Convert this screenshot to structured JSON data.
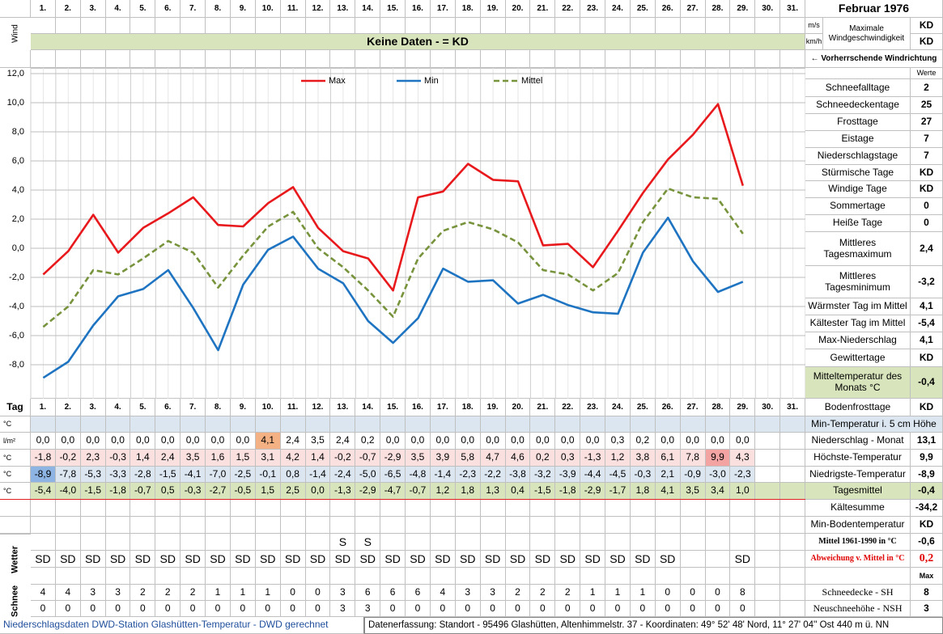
{
  "header": {
    "title": "Februar 1976"
  },
  "wind": {
    "label": "Wind",
    "units": [
      "m/s",
      "km/h"
    ],
    "banner": "Keine Daten -  = KD",
    "max_label": "Maximale Windgeschwindigkeit",
    "max_values": [
      "KD",
      "KD"
    ],
    "direction": "← Vorherrschende Windrichtung"
  },
  "chart_data": {
    "type": "line",
    "categories": [
      "1.",
      "2.",
      "3.",
      "4.",
      "5.",
      "6.",
      "7.",
      "8.",
      "9.",
      "10.",
      "11.",
      "12.",
      "13.",
      "14.",
      "15.",
      "16.",
      "17.",
      "18.",
      "19.",
      "20.",
      "21.",
      "22.",
      "23.",
      "24.",
      "25.",
      "26.",
      "27.",
      "28.",
      "29.",
      "30.",
      "31."
    ],
    "series": [
      {
        "name": "Max",
        "color": "#e8191c",
        "values": [
          -1.8,
          -0.2,
          2.3,
          -0.3,
          1.4,
          2.4,
          3.5,
          1.6,
          1.5,
          3.1,
          4.2,
          1.4,
          -0.2,
          -0.7,
          -2.9,
          3.5,
          3.9,
          5.8,
          4.7,
          4.6,
          0.2,
          0.3,
          -1.3,
          1.2,
          3.8,
          6.1,
          7.8,
          9.9,
          4.3,
          null,
          null
        ],
        "value_labels": [
          "-1,8",
          "-0,2",
          "2,3",
          "-0,3",
          "1,4",
          "2,4",
          "3,5",
          "1,6",
          "1,5",
          "3,1",
          "4,2",
          "1,4",
          "-0,2",
          "-0,7",
          "-2,9",
          "3,5",
          "3,9",
          "5,8",
          "4,7",
          "4,6",
          "0,2",
          "0,3",
          "-1,3",
          "1,2",
          "3,8",
          "6,1",
          "7,8",
          "9,9",
          "4,3",
          null,
          null
        ]
      },
      {
        "name": "Min",
        "color": "#1f74c2",
        "values": [
          -8.9,
          -7.8,
          -5.3,
          -3.3,
          -2.8,
          -1.5,
          -4.1,
          -7.0,
          -2.5,
          -0.1,
          0.8,
          -1.4,
          -2.4,
          -5.0,
          -6.5,
          -4.8,
          -1.4,
          -2.3,
          -2.2,
          -3.8,
          -3.2,
          -3.9,
          -4.4,
          -4.5,
          -0.3,
          2.1,
          -0.9,
          -3.0,
          -2.3,
          null,
          null
        ],
        "value_labels": [
          "-8,9",
          "-7,8",
          "-5,3",
          "-3,3",
          "-2,8",
          "-1,5",
          "-4,1",
          "-7,0",
          "-2,5",
          "-0,1",
          "0,8",
          "-1,4",
          "-2,4",
          "-5,0",
          "-6,5",
          "-4,8",
          "-1,4",
          "-2,3",
          "-2,2",
          "-3,8",
          "-3,2",
          "-3,9",
          "-4,4",
          "-4,5",
          "-0,3",
          "2,1",
          "-0,9",
          "-3,0",
          "-2,3",
          null,
          null
        ]
      },
      {
        "name": "Mittel",
        "color": "#77933c",
        "line_style": "dashed",
        "values": [
          -5.4,
          -4.0,
          -1.5,
          -1.8,
          -0.7,
          0.5,
          -0.3,
          -2.7,
          -0.5,
          1.5,
          2.5,
          0.0,
          -1.3,
          -2.9,
          -4.7,
          -0.7,
          1.2,
          1.8,
          1.3,
          0.4,
          -1.5,
          -1.8,
          -2.9,
          -1.7,
          1.8,
          4.1,
          3.5,
          3.4,
          1.0,
          null,
          null
        ],
        "value_labels": [
          "-5,4",
          "-4,0",
          "-1,5",
          "-1,8",
          "-0,7",
          "0,5",
          "-0,3",
          "-2,7",
          "-0,5",
          "1,5",
          "2,5",
          "0,0",
          "-1,3",
          "-2,9",
          "-4,7",
          "-0,7",
          "1,2",
          "1,8",
          "1,3",
          "0,4",
          "-1,5",
          "-1,8",
          "-2,9",
          "-1,7",
          "1,8",
          "4,1",
          "3,5",
          "3,4",
          "1,0",
          null,
          null
        ]
      }
    ],
    "ylim": [
      -10,
      12
    ],
    "yticks": [
      {
        "value": 12,
        "label": "12,0"
      },
      {
        "value": 10,
        "label": "10,0"
      },
      {
        "value": 8,
        "label": "8,0"
      },
      {
        "value": 6,
        "label": "6,0"
      },
      {
        "value": 4,
        "label": "4,0"
      },
      {
        "value": 2,
        "label": "2,0"
      },
      {
        "value": 0,
        "label": "0,0"
      },
      {
        "value": -2,
        "label": "-2,0"
      },
      {
        "value": -4,
        "label": "-4,0"
      },
      {
        "value": -6,
        "label": "-6,0"
      },
      {
        "value": -8,
        "label": "-8,0"
      }
    ],
    "grid": true
  },
  "stats": {
    "header": "Werte",
    "rows": [
      {
        "label": "Schneefalltage",
        "value": "2"
      },
      {
        "label": "Schneedeckentage",
        "value": "25"
      },
      {
        "label": "Frosttage",
        "value": "27"
      },
      {
        "label": "Eistage",
        "value": "7"
      },
      {
        "label": "Niederschlagstage",
        "value": "7"
      },
      {
        "label": "Stürmische Tage",
        "value": "KD"
      },
      {
        "label": "Windige Tage",
        "value": "KD"
      },
      {
        "label": "Sommertage",
        "value": "0"
      },
      {
        "label": "Heiße Tage",
        "value": "0"
      },
      {
        "label": "Mittleres Tagesmaximum",
        "value": "2,4"
      },
      {
        "label": "Mittleres Tagesminimum",
        "value": "-3,2"
      },
      {
        "label": "Wärmster Tag im Mittel",
        "value": "4,1"
      },
      {
        "label": "Kältester Tag im Mittel",
        "value": "-5,4"
      },
      {
        "label": "Max-Niederschlag",
        "value": "4,1"
      },
      {
        "label": "Gewittertage",
        "value": "KD"
      },
      {
        "label": "Mitteltemperatur des Monats °C",
        "value": "-0,4"
      },
      {
        "label": "Bodenfrosttage",
        "value": "KD"
      }
    ]
  },
  "table": {
    "tag": "Tag",
    "units": [
      "°C",
      "l/m²",
      "°C",
      "°C",
      "°C"
    ],
    "precipitation": [
      "0,0",
      "0,0",
      "0,0",
      "0,0",
      "0,0",
      "0,0",
      "0,0",
      "0,0",
      "0,0",
      "4,1",
      "2,4",
      "3,5",
      "2,4",
      "0,2",
      "0,0",
      "0,0",
      "0,0",
      "0,0",
      "0,0",
      "0,0",
      "0,0",
      "0,0",
      "0,0",
      "0,3",
      "0,2",
      "0,0",
      "0,0",
      "0,0",
      "0,0"
    ]
  },
  "summary": [
    {
      "label": "Min-Temperatur i. 5 cm Höhe"
    },
    {
      "label": "Niederschlag - Monat",
      "value": "13,1"
    },
    {
      "label": "Höchste-Temperatur",
      "value": "9,9"
    },
    {
      "label": "Niedrigste-Temperatur",
      "value": "-8,9"
    },
    {
      "label": "Tagesmittel",
      "value": "-0,4"
    },
    {
      "label": "Kältesumme",
      "value": "-34,2"
    },
    {
      "label": "Min-Bodentemperatur",
      "value": "KD"
    },
    {
      "label": "Mittel 1961-1990 in °C",
      "value": "-0,6"
    },
    {
      "label": "Abweichung v. Mittel in °C",
      "value": "0,2"
    },
    {
      "value": "Max"
    },
    {
      "label": "Schneedecke -  SH",
      "value": "8"
    },
    {
      "label": "Neuschneehöhe - NSH",
      "value": "3"
    }
  ],
  "weather": {
    "label": "Wetter",
    "snowfall": [
      null,
      null,
      null,
      null,
      null,
      null,
      null,
      null,
      null,
      null,
      null,
      null,
      "S",
      "S",
      null,
      null,
      null,
      null,
      null,
      null,
      null,
      null,
      null,
      null,
      null,
      null,
      null,
      null,
      null
    ],
    "codes": [
      "SD",
      "SD",
      "SD",
      "SD",
      "SD",
      "SD",
      "SD",
      "SD",
      "SD",
      "SD",
      "SD",
      "SD",
      "SD",
      "SD",
      "SD",
      "SD",
      "SD",
      "SD",
      "SD",
      "SD",
      "SD",
      "SD",
      "SD",
      "SD",
      "SD",
      "SD",
      null,
      null,
      "SD"
    ]
  },
  "snow": {
    "label": "Schnee",
    "depth": [
      4,
      4,
      3,
      3,
      2,
      2,
      2,
      1,
      1,
      1,
      0,
      0,
      3,
      6,
      6,
      6,
      4,
      3,
      3,
      2,
      2,
      2,
      1,
      1,
      1,
      0,
      0,
      0,
      8
    ],
    "new": [
      0,
      0,
      0,
      0,
      0,
      0,
      0,
      0,
      0,
      0,
      0,
      0,
      3,
      3,
      0,
      0,
      0,
      0,
      0,
      0,
      0,
      0,
      0,
      0,
      0,
      0,
      0,
      0,
      0
    ]
  },
  "footer": {
    "left": "Niederschlagsdaten DWD-Station Glashütten-Temperatur -  DWD gerechnet",
    "right": "Datenerfassung: Standort - 95496 Glashütten, Altenhimmelstr. 37 - Koordinaten: 49° 52' 48' Nord,  11° 27' 04'' Ost  440 m ü. NN"
  }
}
